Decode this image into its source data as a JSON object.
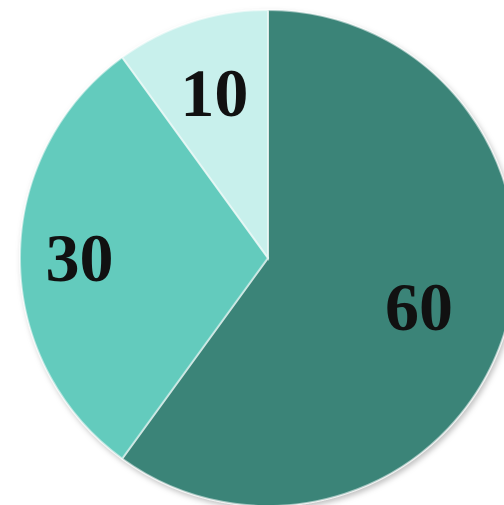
{
  "chart_data": {
    "type": "pie",
    "categories": [
      "",
      "",
      ""
    ],
    "values": [
      60,
      30,
      10
    ],
    "data_labels": [
      "60",
      "30",
      "10"
    ],
    "colors": [
      "#3a8478",
      "#64cbbd",
      "#c8f0ec"
    ],
    "start_angle_deg": 0,
    "direction": "clockwise",
    "legend": "none"
  }
}
